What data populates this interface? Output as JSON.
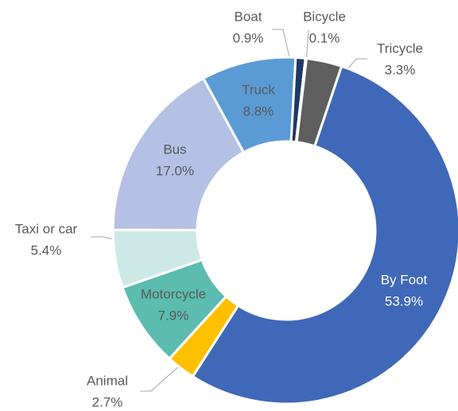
{
  "chart_data": {
    "type": "donut",
    "categories": [
      "By Foot",
      "Animal",
      "Motorcycle",
      "Taxi or car",
      "Bus",
      "Truck",
      "Boat",
      "Bicycle",
      "Tricycle"
    ],
    "values": [
      53.9,
      2.7,
      7.9,
      5.4,
      17.0,
      8.8,
      0.9,
      0.1,
      3.3
    ],
    "value_labels": [
      "53.9%",
      "2.7%",
      "7.9%",
      "5.4%",
      "17.0%",
      "8.8%",
      "0.9%",
      "0.1%",
      "3.3%"
    ],
    "colors": [
      "#4068b8",
      "#ffc000",
      "#5cbcb0",
      "#cde9e6",
      "#b4c1e4",
      "#5b9bd5",
      "#203864",
      "#a5a5a5",
      "#5e5e5e"
    ]
  }
}
